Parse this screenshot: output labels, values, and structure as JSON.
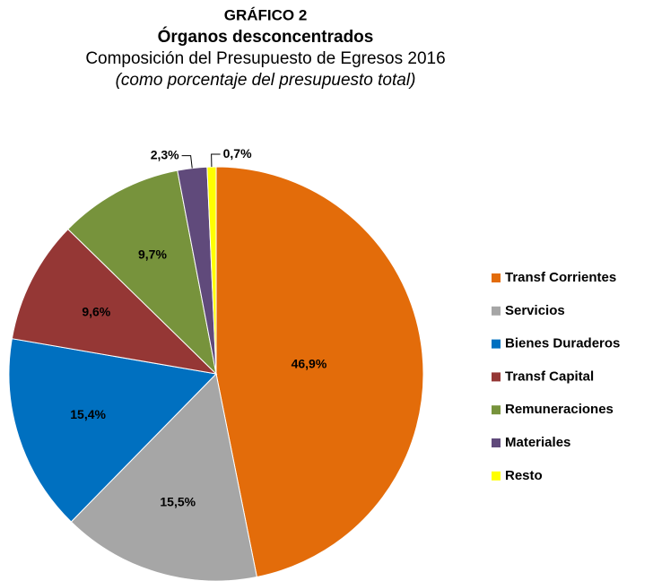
{
  "chart_data": {
    "type": "pie",
    "title_prefix": "GRÁFICO 2",
    "title": "Órganos desconcentrados",
    "subtitle": "Composición del Presupuesto de Egresos 2016",
    "note": "(como porcentaje del presupuesto total)",
    "categories": [
      "Transf Corrientes",
      "Servicios",
      "Bienes Duraderos",
      "Transf Capital",
      "Remuneraciones",
      "Materiales",
      "Resto"
    ],
    "values": [
      46.9,
      15.5,
      15.4,
      9.6,
      9.7,
      2.3,
      0.7
    ],
    "value_labels": [
      "46,9%",
      "15,5%",
      "15,4%",
      "9,6%",
      "9,7%",
      "2,3%",
      "0,7%"
    ],
    "colors": [
      "#e36c0a",
      "#a6a6a6",
      "#0070c0",
      "#953735",
      "#77933c",
      "#604a7b",
      "#ffff00"
    ],
    "legend": "right"
  }
}
